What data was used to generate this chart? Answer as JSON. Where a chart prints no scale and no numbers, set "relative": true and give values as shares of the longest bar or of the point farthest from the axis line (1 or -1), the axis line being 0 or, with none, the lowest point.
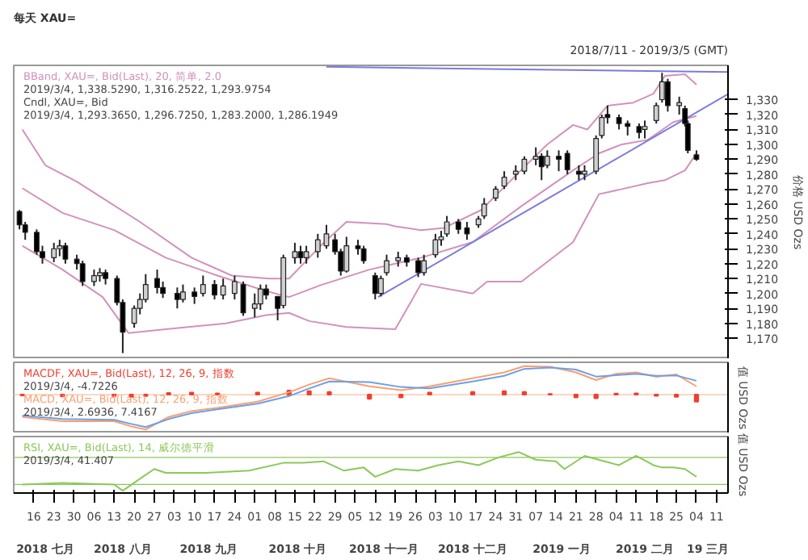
{
  "chart_data": [
    {
      "type": "candlestick",
      "title": "每天 XAU=",
      "subtitle": "2018/7/11 - 2019/3/5 (GMT)",
      "ylabel": "价格 USD Ozs",
      "tick_labels": "y",
      "grid": false,
      "xlim": [
        "2018-07-09",
        "2019-03-15"
      ],
      "ylim": [
        1156,
        1353
      ],
      "yticks": [
        {
          "value": 1170,
          "label": "1,170"
        },
        {
          "value": 1180,
          "label": "1,180"
        },
        {
          "value": 1190,
          "label": "1,190"
        },
        {
          "value": 1200,
          "label": "1,200"
        },
        {
          "value": 1210,
          "label": "1,210"
        },
        {
          "value": 1220,
          "label": "1,220"
        },
        {
          "value": 1230,
          "label": "1,230"
        },
        {
          "value": 1240,
          "label": "1,240"
        },
        {
          "value": 1250,
          "label": "1,250"
        },
        {
          "value": 1260,
          "label": "1,260"
        },
        {
          "value": 1270,
          "label": "1,270"
        },
        {
          "value": 1280,
          "label": "1,280"
        },
        {
          "value": 1290,
          "label": "1,290"
        },
        {
          "value": 1300,
          "label": "1,300"
        },
        {
          "value": 1310,
          "label": "1,310"
        },
        {
          "value": 1320,
          "label": "1,320"
        },
        {
          "value": 1330,
          "label": "1,330"
        }
      ],
      "x": [
        "2018-07-11",
        "2018-07-13",
        "2018-07-17",
        "2018-07-19",
        "2018-07-23",
        "2018-07-25",
        "2018-07-27",
        "2018-07-31",
        "2018-08-02",
        "2018-08-06",
        "2018-08-08",
        "2018-08-10",
        "2018-08-14",
        "2018-08-16",
        "2018-08-20",
        "2018-08-22",
        "2018-08-24",
        "2018-08-28",
        "2018-08-30",
        "2018-09-04",
        "2018-09-06",
        "2018-09-10",
        "2018-09-13",
        "2018-09-17",
        "2018-09-20",
        "2018-09-24",
        "2018-09-27",
        "2018-10-01",
        "2018-10-03",
        "2018-10-05",
        "2018-10-09",
        "2018-10-11",
        "2018-10-15",
        "2018-10-17",
        "2018-10-19",
        "2018-10-23",
        "2018-10-26",
        "2018-10-29",
        "2018-10-31",
        "2018-11-02",
        "2018-11-06",
        "2018-11-08",
        "2018-11-12",
        "2018-11-14",
        "2018-11-16",
        "2018-11-20",
        "2018-11-23",
        "2018-11-27",
        "2018-11-29",
        "2018-12-03",
        "2018-12-05",
        "2018-12-07",
        "2018-12-11",
        "2018-12-14",
        "2018-12-18",
        "2018-12-20",
        "2018-12-24",
        "2018-12-27",
        "2018-12-31",
        "2019-01-03",
        "2019-01-07",
        "2019-01-09",
        "2019-01-11",
        "2019-01-15",
        "2019-01-18",
        "2019-01-22",
        "2019-01-24",
        "2019-01-28",
        "2019-01-30",
        "2019-02-01",
        "2019-02-05",
        "2019-02-08",
        "2019-02-12",
        "2019-02-14",
        "2019-02-18",
        "2019-02-20",
        "2019-02-22",
        "2019-02-26",
        "2019-02-28",
        "2019-03-01",
        "2019-03-04"
      ],
      "ohlc": [
        [
          1255,
          1256,
          1243,
          1246
        ],
        [
          1246,
          1248,
          1236,
          1241
        ],
        [
          1241,
          1243,
          1226,
          1228
        ],
        [
          1228,
          1232,
          1220,
          1224
        ],
        [
          1224,
          1234,
          1221,
          1230
        ],
        [
          1230,
          1236,
          1225,
          1232
        ],
        [
          1232,
          1234,
          1220,
          1223
        ],
        [
          1223,
          1226,
          1216,
          1220
        ],
        [
          1220,
          1222,
          1205,
          1208
        ],
        [
          1208,
          1216,
          1205,
          1212
        ],
        [
          1212,
          1217,
          1208,
          1214
        ],
        [
          1214,
          1216,
          1206,
          1210
        ],
        [
          1210,
          1212,
          1192,
          1194
        ],
        [
          1194,
          1196,
          1160,
          1174
        ],
        [
          1180,
          1192,
          1177,
          1190
        ],
        [
          1190,
          1200,
          1186,
          1196
        ],
        [
          1196,
          1213,
          1194,
          1206
        ],
        [
          1210,
          1216,
          1200,
          1204
        ],
        [
          1204,
          1208,
          1197,
          1200
        ],
        [
          1200,
          1204,
          1190,
          1196
        ],
        [
          1196,
          1206,
          1194,
          1201
        ],
        [
          1201,
          1204,
          1193,
          1198
        ],
        [
          1200,
          1212,
          1198,
          1206
        ],
        [
          1206,
          1209,
          1196,
          1199
        ],
        [
          1199,
          1210,
          1196,
          1205
        ],
        [
          1200,
          1212,
          1196,
          1208
        ],
        [
          1206,
          1208,
          1185,
          1187
        ],
        [
          1190,
          1200,
          1184,
          1193
        ],
        [
          1193,
          1206,
          1189,
          1203
        ],
        [
          1203,
          1206,
          1196,
          1199
        ],
        [
          1198,
          1198,
          1182,
          1190
        ],
        [
          1192,
          1226,
          1190,
          1224
        ],
        [
          1224,
          1234,
          1220,
          1228
        ],
        [
          1228,
          1232,
          1220,
          1224
        ],
        [
          1224,
          1232,
          1220,
          1228
        ],
        [
          1228,
          1240,
          1224,
          1236
        ],
        [
          1232,
          1246,
          1230,
          1240
        ],
        [
          1236,
          1240,
          1226,
          1228
        ],
        [
          1228,
          1230,
          1212,
          1215
        ],
        [
          1215,
          1238,
          1214,
          1232
        ],
        [
          1232,
          1236,
          1226,
          1230
        ],
        [
          1230,
          1232,
          1220,
          1222
        ],
        [
          1212,
          1214,
          1196,
          1200
        ],
        [
          1200,
          1212,
          1198,
          1210
        ],
        [
          1214,
          1226,
          1212,
          1222
        ],
        [
          1222,
          1228,
          1218,
          1224
        ],
        [
          1224,
          1226,
          1218,
          1221
        ],
        [
          1222,
          1224,
          1211,
          1214
        ],
        [
          1214,
          1226,
          1212,
          1222
        ],
        [
          1226,
          1240,
          1224,
          1236
        ],
        [
          1236,
          1242,
          1232,
          1238
        ],
        [
          1240,
          1252,
          1238,
          1248
        ],
        [
          1248,
          1250,
          1240,
          1243
        ],
        [
          1244,
          1248,
          1236,
          1240
        ],
        [
          1246,
          1252,
          1244,
          1250
        ],
        [
          1252,
          1264,
          1250,
          1260
        ],
        [
          1264,
          1272,
          1262,
          1270
        ],
        [
          1272,
          1282,
          1270,
          1278
        ],
        [
          1280,
          1286,
          1276,
          1282
        ],
        [
          1282,
          1292,
          1280,
          1290
        ],
        [
          1290,
          1298,
          1286,
          1292
        ],
        [
          1292,
          1294,
          1276,
          1285
        ],
        [
          1286,
          1296,
          1284,
          1292
        ],
        [
          1292,
          1296,
          1282,
          1290
        ],
        [
          1294,
          1296,
          1280,
          1283
        ],
        [
          1282,
          1286,
          1276,
          1280
        ],
        [
          1280,
          1286,
          1276,
          1282
        ],
        [
          1282,
          1306,
          1280,
          1304
        ],
        [
          1306,
          1320,
          1304,
          1318
        ],
        [
          1320,
          1326,
          1314,
          1318
        ],
        [
          1318,
          1320,
          1310,
          1314
        ],
        [
          1314,
          1316,
          1306,
          1312
        ],
        [
          1312,
          1314,
          1304,
          1308
        ],
        [
          1310,
          1316,
          1304,
          1312
        ],
        [
          1316,
          1328,
          1314,
          1326
        ],
        [
          1330,
          1348,
          1328,
          1342
        ],
        [
          1342,
          1344,
          1322,
          1326
        ],
        [
          1326,
          1332,
          1320,
          1328
        ],
        [
          1324,
          1326,
          1312,
          1314
        ],
        [
          1314,
          1316,
          1294,
          1296
        ],
        [
          1293,
          1296,
          1289,
          1290
        ]
      ],
      "series": [
        {
          "type": "line",
          "color": "#d291bc",
          "x": [
            "2018-07-12",
            "2018-07-20",
            "2018-07-31",
            "2018-08-22",
            "2018-09-09",
            "2018-09-23",
            "2018-10-06",
            "2018-10-13",
            "2018-10-24",
            "2018-11-02",
            "2018-11-16",
            "2018-11-19",
            "2018-11-28",
            "2018-12-06",
            "2018-12-19",
            "2019-01-02",
            "2019-01-11",
            "2019-01-20",
            "2019-01-25",
            "2019-02-01",
            "2019-02-10",
            "2019-02-17",
            "2019-02-21",
            "2019-02-28",
            "2019-03-04"
          ],
          "values": [
            1310,
            1286,
            1275,
            1248,
            1224,
            1212,
            1210,
            1210,
            1232,
            1248,
            1246.5,
            1245,
            1242.5,
            1244,
            1256,
            1283,
            1300,
            1313,
            1310,
            1326,
            1328,
            1334,
            1346,
            1347,
            1340
          ]
        },
        {
          "type": "line",
          "color": "#d291bc",
          "name": "BBand, XAU=, Bid(Last), 20, 简单, 2.0",
          "x": [
            "2018-07-12",
            "2018-07-26",
            "2018-08-13",
            "2018-08-31",
            "2018-09-18",
            "2018-10-05",
            "2018-10-13",
            "2018-10-24",
            "2018-11-10",
            "2018-11-19",
            "2018-11-28",
            "2018-12-16",
            "2019-01-02",
            "2019-01-20",
            "2019-01-29",
            "2019-02-06",
            "2019-02-15",
            "2019-02-24",
            "2019-03-04"
          ],
          "values": [
            1270.6,
            1254,
            1242.5,
            1224,
            1212,
            1201.6,
            1197.6,
            1205.6,
            1216,
            1220,
            1224,
            1234.5,
            1258.6,
            1282.6,
            1294,
            1300,
            1303,
            1315,
            1319
          ]
        },
        {
          "type": "line",
          "color": "#d291bc",
          "x": [
            "2018-07-12",
            "2018-07-26",
            "2018-08-09",
            "2018-08-18",
            "2018-08-31",
            "2018-09-21",
            "2018-10-05",
            "2018-10-13",
            "2018-10-20",
            "2018-11-02",
            "2018-11-19",
            "2018-11-28",
            "2018-12-16",
            "2018-12-21",
            "2019-01-02",
            "2019-01-20",
            "2019-01-29",
            "2019-02-06",
            "2019-02-15",
            "2019-02-21",
            "2019-02-28",
            "2019-03-04"
          ],
          "values": [
            1232,
            1216,
            1197.6,
            1173.5,
            1176,
            1180,
            1185.5,
            1187,
            1181.5,
            1177.5,
            1176,
            1206.4,
            1200,
            1208,
            1208,
            1234.5,
            1266.6,
            1270,
            1274,
            1276,
            1282.6,
            1294
          ]
        },
        {
          "type": "line",
          "color": "#7b7bdc",
          "x": [
            "2018-11-13",
            "2019-03-15"
          ],
          "values": [
            1197.6,
            1333.7
          ]
        },
        {
          "type": "line",
          "color": "#7b7bdc",
          "x": [
            "2018-10-26",
            "2019-03-15"
          ],
          "values": [
            1352,
            1348.5
          ]
        }
      ],
      "annotations": [
        "2019/3/4, 1,338.5290, 1,316.2522, 1,293.9754",
        "Cndl, XAU=, Bid",
        "2019/3/4, 1,293.3650, 1,296.7250, 1,283.2000, 1,286.1949"
      ]
    },
    {
      "type": "line",
      "relative": true,
      "ylabel": "值 USD Ozs",
      "tick_labels": false,
      "grid": false,
      "xlim": [
        "2018-07-09",
        "2019-03-15"
      ],
      "x": [
        "2018-07-12",
        "2018-07-26",
        "2018-08-13",
        "2018-08-19",
        "2018-08-24",
        "2018-09-01",
        "2018-09-09",
        "2018-09-18",
        "2018-10-02",
        "2018-10-13",
        "2018-10-20",
        "2018-10-27",
        "2018-11-10",
        "2018-11-21",
        "2018-12-01",
        "2018-12-16",
        "2018-12-27",
        "2019-01-03",
        "2019-01-12",
        "2019-01-21",
        "2019-01-28",
        "2019-02-04",
        "2019-02-11",
        "2019-02-18",
        "2019-02-25",
        "2019-03-04"
      ],
      "series": [
        {
          "type": "bar",
          "color": "#f04030",
          "name": "MACDF, XAU=, Bid(Last), 12, 26, 9, 指数",
          "values": [
            -0.02,
            -0.05,
            -0.04,
            -0.06,
            -0.04,
            0.05,
            0.06,
            0.04,
            0.06,
            0.12,
            0.1,
            0.08,
            -0.12,
            -0.08,
            0.06,
            0.08,
            0.1,
            0.08,
            0.02,
            -0.08,
            -0.1,
            0.03,
            0.04,
            -0.03,
            -0.06,
            -0.2
          ]
        },
        {
          "type": "line",
          "color": "#f8a070",
          "name": "MACD, XAU=, Bid(Last), 12, 26, 9, 指数",
          "values": [
            -0.64,
            -0.76,
            -0.76,
            -0.91,
            -1,
            -0.64,
            -0.47,
            -0.38,
            -0.2,
            0.07,
            0.29,
            0.47,
            0.24,
            0.13,
            0.24,
            0.47,
            0.64,
            0.82,
            0.8,
            0.64,
            0.42,
            0.6,
            0.64,
            0.51,
            0.58,
            0.24
          ]
        },
        {
          "type": "line",
          "color": "#6f9ee8",
          "values": [
            -0.6,
            -0.7,
            -0.72,
            -0.84,
            -0.93,
            -0.7,
            -0.53,
            -0.42,
            -0.26,
            -0.04,
            0.18,
            0.38,
            0.36,
            0.22,
            0.18,
            0.38,
            0.54,
            0.74,
            0.78,
            0.72,
            0.52,
            0.56,
            0.6,
            0.54,
            0.55,
            0.4
          ]
        }
      ],
      "ref_lines": [
        {
          "axis": "y",
          "value": 0,
          "color": "#f8c0a0"
        }
      ],
      "annotations": [
        "2019/3/4, -4.7226",
        "2019/3/4, 2.6936, 7.4167"
      ]
    },
    {
      "type": "line",
      "relative": true,
      "ylabel": "值 USD Ozs",
      "tick_labels": "x",
      "grid": false,
      "xlim": [
        "2018-07-09",
        "2019-03-15"
      ],
      "xticks": [
        {
          "value": "2018-07-16",
          "label": "16"
        },
        {
          "value": "2018-07-23",
          "label": "23"
        },
        {
          "value": "2018-07-30",
          "label": "30"
        },
        {
          "value": "2018-08-06",
          "label": "06"
        },
        {
          "value": "2018-08-13",
          "label": "13"
        },
        {
          "value": "2018-08-20",
          "label": "20"
        },
        {
          "value": "2018-08-27",
          "label": "27"
        },
        {
          "value": "2018-09-03",
          "label": "03"
        },
        {
          "value": "2018-09-10",
          "label": "10"
        },
        {
          "value": "2018-09-17",
          "label": "17"
        },
        {
          "value": "2018-09-24",
          "label": "24"
        },
        {
          "value": "2018-10-01",
          "label": "01"
        },
        {
          "value": "2018-10-08",
          "label": "08"
        },
        {
          "value": "2018-10-15",
          "label": "15"
        },
        {
          "value": "2018-10-22",
          "label": "22"
        },
        {
          "value": "2018-10-29",
          "label": "29"
        },
        {
          "value": "2018-11-05",
          "label": "05"
        },
        {
          "value": "2018-11-12",
          "label": "12"
        },
        {
          "value": "2018-11-19",
          "label": "19"
        },
        {
          "value": "2018-11-26",
          "label": "26"
        },
        {
          "value": "2018-12-03",
          "label": "03"
        },
        {
          "value": "2018-12-10",
          "label": "10"
        },
        {
          "value": "2018-12-17",
          "label": "17"
        },
        {
          "value": "2018-12-24",
          "label": "24"
        },
        {
          "value": "2018-12-31",
          "label": "31"
        },
        {
          "value": "2019-01-07",
          "label": "07"
        },
        {
          "value": "2019-01-14",
          "label": "14"
        },
        {
          "value": "2019-01-21",
          "label": "21"
        },
        {
          "value": "2019-01-28",
          "label": "28"
        },
        {
          "value": "2019-02-04",
          "label": "04"
        },
        {
          "value": "2019-02-11",
          "label": "11"
        },
        {
          "value": "2019-02-18",
          "label": "18"
        },
        {
          "value": "2019-02-25",
          "label": "25"
        },
        {
          "value": "2019-03-04",
          "label": "04"
        },
        {
          "value": "2019-03-11",
          "label": "11"
        }
      ],
      "x": [
        "2018-07-12",
        "2018-07-26",
        "2018-08-13",
        "2018-08-16",
        "2018-08-23",
        "2018-08-27",
        "2018-08-31",
        "2018-09-14",
        "2018-09-29",
        "2018-10-11",
        "2018-10-18",
        "2018-10-25",
        "2018-11-01",
        "2018-11-08",
        "2018-11-12",
        "2018-11-19",
        "2018-11-27",
        "2018-12-04",
        "2018-12-11",
        "2018-12-18",
        "2018-12-25",
        "2019-01-01",
        "2019-01-07",
        "2019-01-14",
        "2019-01-17",
        "2019-01-24",
        "2019-01-31",
        "2019-02-05",
        "2019-02-11",
        "2019-02-17",
        "2019-02-20",
        "2019-02-24",
        "2019-02-28",
        "2019-03-04"
      ],
      "series": [
        {
          "type": "line",
          "color": "#8cc85a",
          "name": "RSI, XAU=, Bid(Last), 14, 威尔德平滑",
          "values": [
            0.16,
            0.2,
            0.16,
            0,
            0.36,
            0.56,
            0.46,
            0.46,
            0.52,
            0.72,
            0.72,
            0.76,
            0.52,
            0.6,
            0.36,
            0.56,
            0.52,
            0.66,
            0.76,
            0.66,
            0.86,
            1,
            0.8,
            0.76,
            0.56,
            0.9,
            0.76,
            0.66,
            0.9,
            0.66,
            0.6,
            0.6,
            0.56,
            0.36
          ]
        }
      ],
      "ref_lines": [
        {
          "axis": "y",
          "value": 0.86,
          "color": "#8cc85a"
        },
        {
          "axis": "y",
          "value": 0.16,
          "color": "#8cc85a"
        }
      ],
      "x2lim": [
        "2018-07-09",
        "2019-03-15"
      ],
      "x2ticks": [
        {
          "value": "2018-07-20",
          "label": "2018 七月"
        },
        {
          "value": "2018-08-16",
          "label": "2018 八月"
        },
        {
          "value": "2018-09-15",
          "label": "2018 九月"
        },
        {
          "value": "2018-10-16",
          "label": "2018 十月"
        },
        {
          "value": "2018-11-15",
          "label": "2018 十一月"
        },
        {
          "value": "2018-12-16",
          "label": "2018 十二月"
        },
        {
          "value": "2019-01-16",
          "label": "2019 一月"
        },
        {
          "value": "2019-02-14",
          "label": "2019 二月"
        },
        {
          "value": "2019-03-08",
          "label": "19 三月"
        }
      ],
      "annotations": [
        "2019/3/4, 41.407"
      ]
    }
  ]
}
